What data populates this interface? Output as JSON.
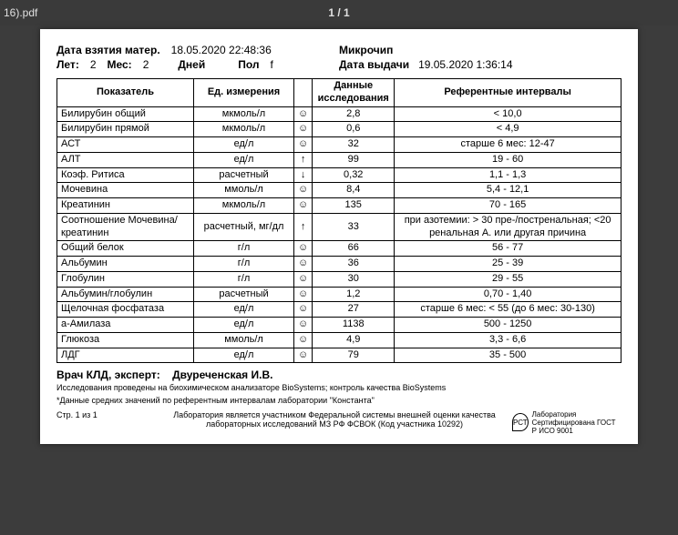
{
  "topbar": {
    "filename_fragment": "16).pdf",
    "page_counter": "1 / 1"
  },
  "header": {
    "sample_date_label": "Дата взятия матер.",
    "sample_date_value": "18.05.2020 22:48:36",
    "microchip_label": "Микрочип",
    "years_label": "Лет:",
    "years_value": "2",
    "months_label": "Мес:",
    "months_value": "2",
    "days_label": "Дней",
    "sex_label": "Пол",
    "sex_value": "f",
    "issue_label": "Дата выдачи",
    "issue_value": "19.05.2020 1:36:14"
  },
  "columns": {
    "name": "Показатель",
    "unit": "Ед. измерения",
    "mark": "",
    "value": "Данные исследования",
    "ref": "Референтные интервалы"
  },
  "rows": [
    {
      "name": "Билирубин общий",
      "unit": "мкмоль/л",
      "mark": "☺",
      "value": "2,8",
      "ref": "< 10,0"
    },
    {
      "name": "Билирубин прямой",
      "unit": "мкмоль/л",
      "mark": "☺",
      "value": "0,6",
      "ref": "< 4,9"
    },
    {
      "name": "АСТ",
      "unit": "ед/л",
      "mark": "☺",
      "value": "32",
      "ref": "старше 6 мес: 12-47"
    },
    {
      "name": "АЛТ",
      "unit": "ед/л",
      "mark": "↑",
      "value": "99",
      "ref": "19 - 60"
    },
    {
      "name": "Коэф. Ритиса",
      "unit": "расчетный",
      "mark": "↓",
      "value": "0,32",
      "ref": "1,1 - 1,3"
    },
    {
      "name": "Мочевина",
      "unit": "ммоль/л",
      "mark": "☺",
      "value": "8,4",
      "ref": "5,4 - 12,1"
    },
    {
      "name": "Креатинин",
      "unit": "мкмоль/л",
      "mark": "☺",
      "value": "135",
      "ref": "70 - 165"
    },
    {
      "name": "Соотношение Мочевина/креатинин",
      "unit": "расчетный, мг/дл",
      "mark": "↑",
      "value": "33",
      "ref": "при азотемии: > 30 пре-/постренальная; <20 ренальная А. или другая причина"
    },
    {
      "name": "Общий белок",
      "unit": "г/л",
      "mark": "☺",
      "value": "66",
      "ref": "56 - 77"
    },
    {
      "name": "Альбумин",
      "unit": "г/л",
      "mark": "☺",
      "value": "36",
      "ref": "25 - 39"
    },
    {
      "name": "Глобулин",
      "unit": "г/л",
      "mark": "☺",
      "value": "30",
      "ref": "29 - 55"
    },
    {
      "name": "Альбумин/глобулин",
      "unit": "расчетный",
      "mark": "☺",
      "value": "1,2",
      "ref": "0,70 - 1,40"
    },
    {
      "name": "Щелочная фосфатаза",
      "unit": "ед/л",
      "mark": "☺",
      "value": "27",
      "ref": "старше 6 мес: < 55 (до 6 мес: 30-130)"
    },
    {
      "name": "а-Амилаза",
      "unit": "ед/л",
      "mark": "☺",
      "value": "1138",
      "ref": "500 - 1250"
    },
    {
      "name": "Глюкоза",
      "unit": "ммоль/л",
      "mark": "☺",
      "value": "4,9",
      "ref": "3,3 - 6,6"
    },
    {
      "name": "ЛДГ",
      "unit": "ед/л",
      "mark": "☺",
      "value": "79",
      "ref": "35 - 500"
    }
  ],
  "footer": {
    "doctor_label": "Врач КЛД, эксперт:",
    "doctor_name": "Двуреченская И.В.",
    "note1": "Исследования проведены на биохимическом анализаторе BioSystems; контроль качества BioSystems",
    "note2": "*Данные средних значений по референтным интервалам лаборатории \"Константа\"",
    "page_of": "Стр. 1 из 1",
    "center": "Лаборатория является участником Федеральной системы внешней оценки качества лабораторных исследований МЗ РФ ФСВОК (Код участника 10292)",
    "cert_logo": "РСТ",
    "cert_text": "Лаборатория Сертифицирована ГОСТ Р ИСО 9001"
  }
}
